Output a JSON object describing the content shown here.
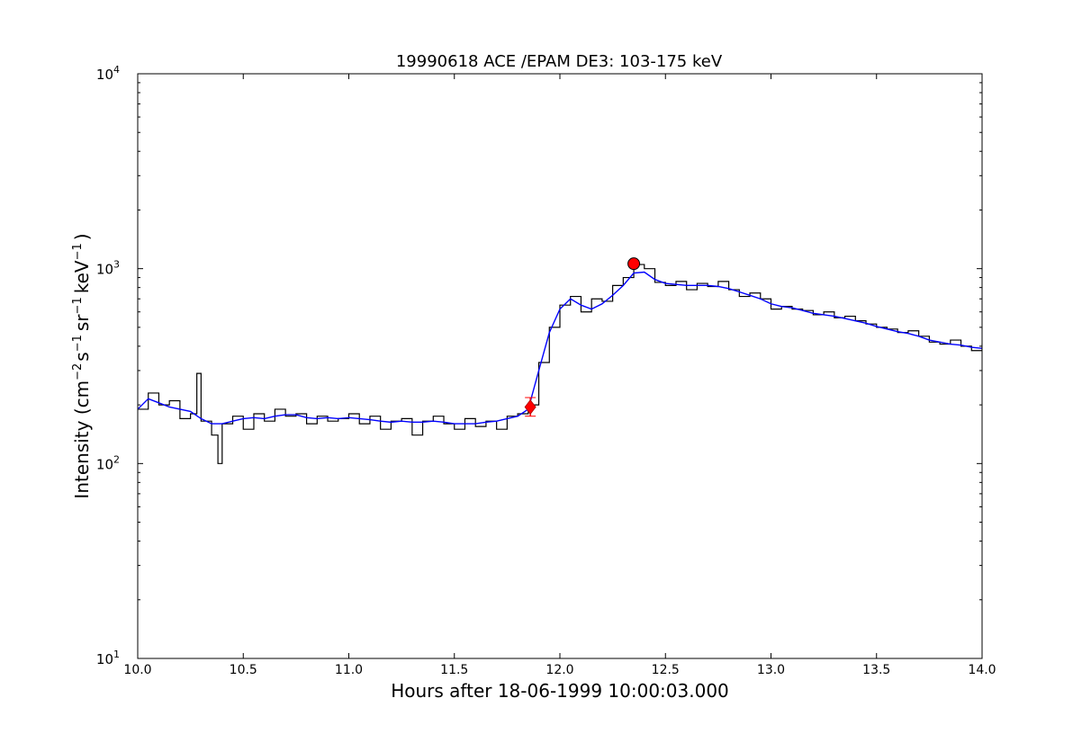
{
  "chart_data": {
    "type": "line",
    "title": "19990618 ACE /EPAM DE3: 103-175 keV",
    "xlabel": "Hours after 18-06-1999 10:00:03.000",
    "ylabel": {
      "prefix": "Intensity (cm",
      "exp1": "−2",
      "mid1": "s",
      "exp2": "−1",
      "mid2": "sr",
      "exp3": "−1",
      "mid3": "keV",
      "exp4": "−1",
      "suffix": ")"
    },
    "xlim": [
      10.0,
      14.0
    ],
    "ylim": [
      10,
      10000
    ],
    "yscale": "log",
    "grid": false,
    "x_ticks": [
      "10.0",
      "10.5",
      "11.0",
      "11.5",
      "12.0",
      "12.5",
      "13.0",
      "13.5",
      "14.0"
    ],
    "x_tick_values": [
      10.0,
      10.5,
      11.0,
      11.5,
      12.0,
      12.5,
      13.0,
      13.5,
      14.0
    ],
    "y_ticks": [
      {
        "value": 10,
        "base": "10",
        "exp": "1"
      },
      {
        "value": 100,
        "base": "10",
        "exp": "2"
      },
      {
        "value": 1000,
        "base": "10",
        "exp": "3"
      },
      {
        "value": 10000,
        "base": "10",
        "exp": "4"
      }
    ],
    "series": [
      {
        "style": "steps",
        "color": "#000000",
        "x": [
          10.0,
          10.05,
          10.1,
          10.15,
          10.2,
          10.25,
          10.28,
          10.3,
          10.35,
          10.38,
          10.4,
          10.45,
          10.5,
          10.55,
          10.6,
          10.65,
          10.7,
          10.75,
          10.8,
          10.85,
          10.9,
          10.95,
          11.0,
          11.05,
          11.1,
          11.15,
          11.2,
          11.25,
          11.3,
          11.35,
          11.4,
          11.45,
          11.5,
          11.55,
          11.6,
          11.65,
          11.7,
          11.75,
          11.8,
          11.85,
          11.9,
          11.95,
          12.0,
          12.05,
          12.1,
          12.15,
          12.2,
          12.25,
          12.3,
          12.35,
          12.4,
          12.45,
          12.5,
          12.55,
          12.6,
          12.65,
          12.7,
          12.75,
          12.8,
          12.85,
          12.9,
          12.95,
          13.0,
          13.05,
          13.1,
          13.15,
          13.2,
          13.25,
          13.3,
          13.35,
          13.4,
          13.45,
          13.5,
          13.55,
          13.6,
          13.65,
          13.7,
          13.75,
          13.8,
          13.85,
          13.9,
          13.95,
          14.0
        ],
        "y": [
          190,
          230,
          200,
          210,
          170,
          180,
          290,
          165,
          140,
          100,
          160,
          175,
          150,
          180,
          165,
          190,
          175,
          180,
          160,
          175,
          165,
          170,
          180,
          160,
          175,
          150,
          165,
          170,
          140,
          165,
          175,
          160,
          150,
          170,
          155,
          165,
          150,
          175,
          180,
          200,
          330,
          500,
          650,
          720,
          600,
          700,
          680,
          820,
          900,
          1050,
          1000,
          850,
          820,
          860,
          780,
          840,
          810,
          860,
          780,
          720,
          750,
          700,
          620,
          640,
          620,
          610,
          580,
          600,
          560,
          570,
          540,
          520,
          500,
          490,
          470,
          480,
          450,
          420,
          410,
          430,
          400,
          380,
          410
        ]
      },
      {
        "style": "line",
        "color": "#0000ff",
        "x": [
          10.0,
          10.05,
          10.1,
          10.15,
          10.2,
          10.25,
          10.3,
          10.35,
          10.4,
          10.45,
          10.5,
          10.55,
          10.6,
          10.65,
          10.7,
          10.75,
          10.8,
          10.85,
          10.9,
          10.95,
          11.0,
          11.05,
          11.1,
          11.15,
          11.2,
          11.25,
          11.3,
          11.35,
          11.4,
          11.45,
          11.5,
          11.55,
          11.6,
          11.65,
          11.7,
          11.75,
          11.8,
          11.85,
          11.9,
          11.95,
          12.0,
          12.05,
          12.1,
          12.15,
          12.2,
          12.25,
          12.3,
          12.35,
          12.4,
          12.45,
          12.5,
          12.55,
          12.6,
          12.65,
          12.7,
          12.75,
          12.8,
          12.85,
          12.9,
          12.95,
          13.0,
          13.05,
          13.1,
          13.15,
          13.2,
          13.25,
          13.3,
          13.35,
          13.4,
          13.45,
          13.5,
          13.55,
          13.6,
          13.65,
          13.7,
          13.75,
          13.8,
          13.85,
          13.9,
          13.95,
          14.0
        ],
        "y": [
          190,
          215,
          205,
          195,
          190,
          185,
          170,
          160,
          160,
          165,
          170,
          172,
          170,
          175,
          178,
          178,
          172,
          170,
          172,
          170,
          172,
          170,
          168,
          165,
          163,
          165,
          163,
          163,
          165,
          163,
          160,
          160,
          160,
          163,
          165,
          170,
          175,
          190,
          300,
          470,
          620,
          700,
          650,
          620,
          660,
          730,
          820,
          950,
          960,
          880,
          840,
          830,
          820,
          820,
          820,
          810,
          790,
          760,
          730,
          700,
          660,
          640,
          630,
          610,
          590,
          580,
          570,
          555,
          540,
          525,
          505,
          490,
          475,
          465,
          450,
          430,
          420,
          410,
          405,
          395,
          390
        ]
      }
    ],
    "markers": [
      {
        "shape": "diamond",
        "x": 11.86,
        "y": 195,
        "color": "#ff0000",
        "error_bar": [
          175,
          218
        ]
      },
      {
        "shape": "circle",
        "x": 12.35,
        "y": 1060,
        "color": "#ff0000"
      }
    ]
  }
}
